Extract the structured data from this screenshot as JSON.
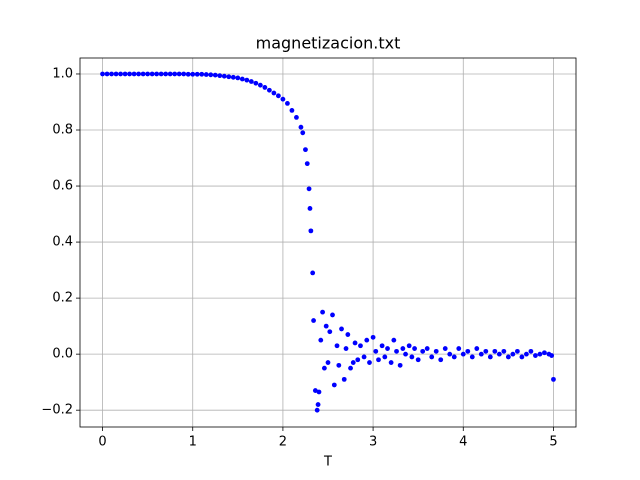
{
  "chart_data": {
    "type": "scatter",
    "title": "magnetizacion.txt",
    "x_label": "T",
    "color": "#0000ff",
    "grid": true,
    "xlim": [
      -0.25,
      5.25
    ],
    "ylim": [
      -0.26,
      1.057
    ],
    "xticks": [
      0,
      1,
      2,
      3,
      4,
      5
    ],
    "yticks": [
      {
        "value": -0.2,
        "label": "−0.2"
      },
      {
        "value": 0,
        "label": "0.0"
      },
      0.2,
      0.4,
      0.6,
      0.8,
      {
        "value": 1,
        "label": "1.0"
      }
    ],
    "x": [
      0,
      0.05,
      0.1,
      0.15,
      0.2,
      0.25,
      0.3,
      0.35,
      0.4,
      0.45,
      0.5,
      0.55,
      0.6,
      0.65,
      0.7,
      0.75,
      0.8,
      0.85,
      0.9,
      0.95,
      1.0,
      1.05,
      1.1,
      1.15,
      1.2,
      1.25,
      1.3,
      1.35,
      1.4,
      1.45,
      1.5,
      1.55,
      1.6,
      1.65,
      1.7,
      1.75,
      1.8,
      1.85,
      1.9,
      1.95,
      2.0,
      2.05,
      2.1,
      2.15,
      2.2,
      2.22,
      2.25,
      2.27,
      2.29,
      2.3,
      2.31,
      2.33,
      2.34,
      2.36,
      2.38,
      2.39,
      2.4,
      2.42,
      2.44,
      2.46,
      2.48,
      2.5,
      2.52,
      2.55,
      2.57,
      2.6,
      2.62,
      2.65,
      2.68,
      2.7,
      2.72,
      2.75,
      2.78,
      2.8,
      2.83,
      2.86,
      2.9,
      2.93,
      2.96,
      3.0,
      3.03,
      3.06,
      3.1,
      3.13,
      3.16,
      3.2,
      3.23,
      3.26,
      3.3,
      3.33,
      3.36,
      3.4,
      3.43,
      3.46,
      3.5,
      3.55,
      3.6,
      3.65,
      3.7,
      3.75,
      3.8,
      3.85,
      3.9,
      3.95,
      4.0,
      4.05,
      4.1,
      4.15,
      4.2,
      4.25,
      4.3,
      4.35,
      4.4,
      4.45,
      4.5,
      4.55,
      4.6,
      4.65,
      4.7,
      4.75,
      4.8,
      4.85,
      4.9,
      4.95,
      4.98,
      5.0
    ],
    "y": [
      1.0,
      1.0,
      1.0,
      1.0,
      1.0,
      1.0,
      1.0,
      1.0,
      1.0,
      1.0,
      1.0,
      1.0,
      1.0,
      1.0,
      1.0,
      1.0,
      1.0,
      1.0,
      1.0,
      0.999,
      0.999,
      0.999,
      0.999,
      0.998,
      0.997,
      0.996,
      0.994,
      0.992,
      0.99,
      0.988,
      0.986,
      0.982,
      0.978,
      0.973,
      0.967,
      0.96,
      0.952,
      0.942,
      0.932,
      0.922,
      0.91,
      0.895,
      0.87,
      0.845,
      0.81,
      0.79,
      0.73,
      0.68,
      0.59,
      0.52,
      0.44,
      0.29,
      0.12,
      -0.13,
      -0.2,
      -0.18,
      -0.135,
      0.05,
      0.15,
      -0.05,
      0.1,
      -0.03,
      0.08,
      0.14,
      -0.11,
      0.03,
      -0.04,
      0.09,
      -0.09,
      0.02,
      0.07,
      -0.05,
      -0.03,
      0.04,
      -0.02,
      0.03,
      -0.01,
      0.05,
      -0.03,
      0.06,
      0.01,
      -0.02,
      0.03,
      -0.01,
      0.02,
      -0.03,
      0.05,
      0.01,
      -0.04,
      0.02,
      0.0,
      0.03,
      -0.01,
      0.02,
      -0.02,
      0.01,
      0.02,
      -0.01,
      0.01,
      -0.02,
      0.02,
      0.0,
      -0.01,
      0.02,
      0.0,
      0.01,
      -0.01,
      0.02,
      0.0,
      0.01,
      -0.01,
      0.01,
      0.0,
      0.01,
      -0.01,
      0.0,
      0.01,
      -0.01,
      0.0,
      0.01,
      -0.005,
      0.0,
      0.005,
      0.0,
      -0.005,
      -0.09
    ]
  }
}
